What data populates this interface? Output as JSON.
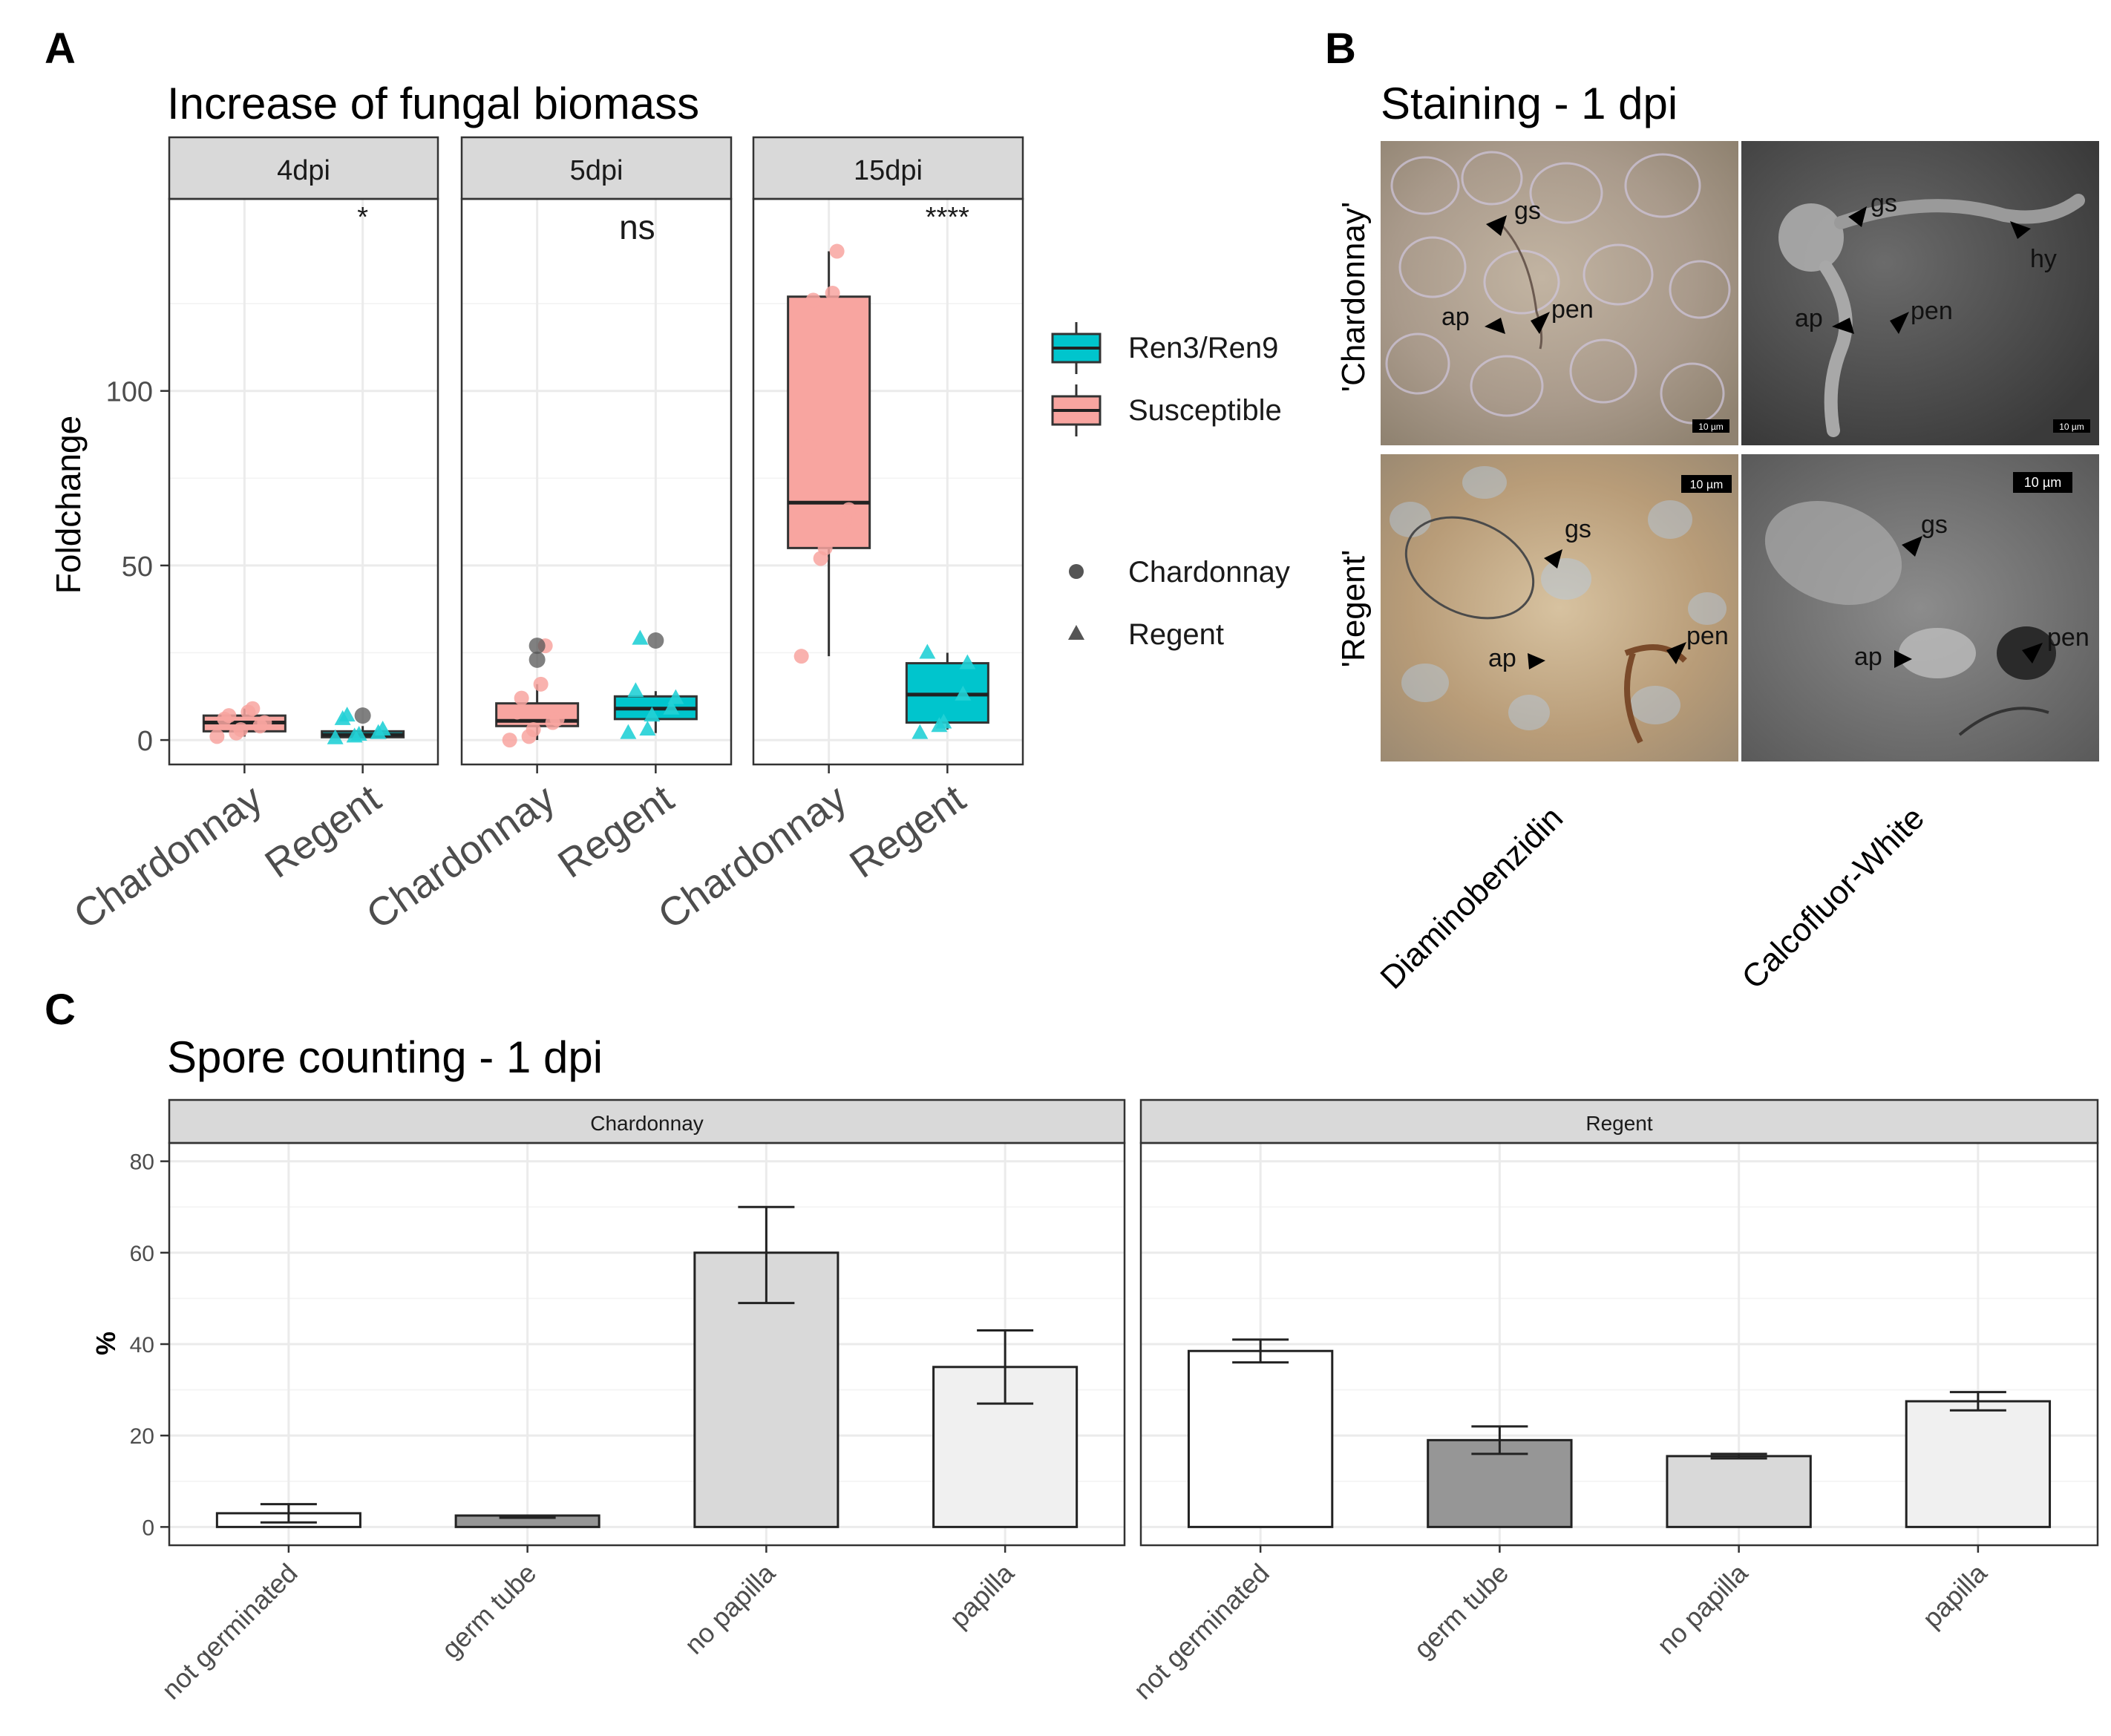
{
  "panels": {
    "A": {
      "letter": "A",
      "title": "Increase of fungal biomass",
      "ylabel": "Foldchange",
      "legend": {
        "fill": [
          {
            "label": "Ren3/Ren9",
            "color": "#00c5cd"
          },
          {
            "label": "Susceptible",
            "color": "#f8a5a0"
          }
        ],
        "shape": [
          {
            "label": "Chardonnay",
            "shape": "circle"
          },
          {
            "label": "Regent",
            "shape": "triangle"
          }
        ]
      }
    },
    "B": {
      "letter": "B",
      "title": "Staining  - 1 dpi",
      "rows": [
        "'Chardonnay'",
        "'Regent'"
      ],
      "columns": [
        "Diaminobenzidin",
        "Calcofluor-White"
      ],
      "tiles": [
        {
          "labels": [
            "gs",
            "ap",
            "pen"
          ],
          "scale": "10 µm"
        },
        {
          "labels": [
            "gs",
            "hy",
            "ap",
            "pen"
          ],
          "scale": "10 µm"
        },
        {
          "labels": [
            "gs",
            "ap",
            "pen"
          ],
          "scale": "10 µm"
        },
        {
          "labels": [
            "gs",
            "ap",
            "pen"
          ],
          "scale": "10 µm"
        }
      ]
    },
    "C": {
      "letter": "C",
      "title": "Spore counting - 1 dpi",
      "ylabel": "%"
    }
  },
  "chart_data": [
    {
      "type": "box",
      "panel": "A",
      "title": "Increase of fungal biomass",
      "ylabel": "Foldchange",
      "ylim": [
        -7,
        155
      ],
      "yticks": [
        0,
        50,
        100
      ],
      "facets": [
        {
          "label": "4dpi",
          "annotation": "*",
          "categories": [
            "Chardonnay",
            "Regent"
          ],
          "boxes": [
            {
              "category": "Chardonnay",
              "group": "Susceptible",
              "min": 1,
              "q1": 2.5,
              "median": 5,
              "q3": 7,
              "max": 9,
              "points": [
                1,
                2,
                3,
                4,
                5,
                6,
                7,
                8,
                9
              ],
              "outliers": []
            },
            {
              "category": "Regent",
              "group": "Ren3/Ren9",
              "min": 0.5,
              "q1": 0.8,
              "median": 1.5,
              "q3": 2.5,
              "max": 4,
              "points": [
                0.5,
                1,
                1.5,
                2,
                3,
                6,
                7
              ],
              "outliers": [
                7
              ]
            }
          ]
        },
        {
          "label": "5dpi",
          "annotation": "ns",
          "categories": [
            "Chardonnay",
            "Regent"
          ],
          "boxes": [
            {
              "category": "Chardonnay",
              "group": "Susceptible",
              "min": 0,
              "q1": 4,
              "median": 5.5,
              "q3": 10.5,
              "max": 16,
              "points": [
                0,
                1,
                3,
                5,
                6,
                8,
                12,
                16,
                27
              ],
              "outliers": [
                23,
                27
              ]
            },
            {
              "category": "Regent",
              "group": "Ren3/Ren9",
              "min": 2,
              "q1": 6,
              "median": 9,
              "q3": 12.5,
              "max": 14,
              "points": [
                2,
                3,
                7,
                9,
                12,
                14,
                29
              ],
              "outliers": [
                28.5
              ]
            }
          ]
        },
        {
          "label": "15dpi",
          "annotation": "****",
          "categories": [
            "Chardonnay",
            "Regent"
          ],
          "boxes": [
            {
              "category": "Chardonnay",
              "group": "Susceptible",
              "min": 24,
              "q1": 55,
              "median": 68,
              "q3": 127,
              "max": 140,
              "points": [
                24,
                52,
                55,
                63,
                66,
                84,
                126,
                128,
                140
              ],
              "outliers": []
            },
            {
              "category": "Regent",
              "group": "Ren3/Ren9",
              "min": 3,
              "q1": 5,
              "median": 13,
              "q3": 22,
              "max": 25,
              "points": [
                2,
                4,
                5,
                13,
                22,
                25
              ],
              "outliers": []
            }
          ]
        }
      ]
    },
    {
      "type": "bar",
      "panel": "C",
      "title": "Spore counting - 1 dpi",
      "ylabel": "%",
      "ylim": [
        -4,
        84
      ],
      "yticks": [
        0,
        20,
        40,
        60,
        80
      ],
      "categories": [
        "not germinated",
        "germ tube",
        "no papilla",
        "papilla"
      ],
      "colors": [
        "#ffffff",
        "#969696",
        "#d9d9d9",
        "#f0f0f0"
      ],
      "facets": [
        {
          "label": "Chardonnay",
          "values": [
            3,
            2.5,
            60,
            35
          ],
          "errors": [
            [
              1,
              5
            ],
            [
              2,
              2.5
            ],
            [
              49,
              70
            ],
            [
              27,
              43
            ]
          ]
        },
        {
          "label": "Regent",
          "values": [
            38.5,
            19,
            15.5,
            27.5
          ],
          "errors": [
            [
              36,
              41
            ],
            [
              16,
              22
            ],
            [
              15,
              16
            ],
            [
              25.5,
              29.5
            ]
          ]
        }
      ]
    }
  ]
}
